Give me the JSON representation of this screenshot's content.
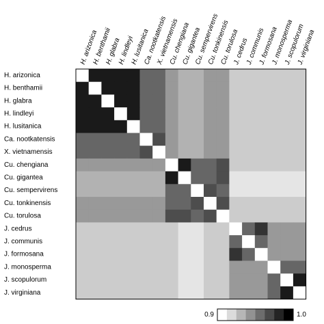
{
  "chart_data": {
    "type": "heatmap",
    "title": "",
    "labels": [
      "H. arizonica",
      "H. benthamii",
      "H. glabra",
      "H. lindleyi",
      "H. lusitanica",
      "Ca. nootkatensis",
      "X. vietnamensis",
      "Cu. chengiana",
      "Cu. gigantea",
      "Cu. sempervirens",
      "Cu. tonkinensis",
      "Cu. torulosa",
      "J. cedrus",
      "J. communis",
      "J. formosana",
      "J. monosperma",
      "J. scopulorum",
      "J. virginiana"
    ],
    "column_labels_position": "top",
    "row_labels_position": "left",
    "colorscale": {
      "min": 0.9,
      "max": 1.0,
      "min_label": "0.9",
      "max_label": "1.0",
      "low_color": "#ffffff",
      "high_color": "#000000",
      "legend_steps": 8,
      "position": "bottom-right"
    },
    "diagonal": "blank",
    "values": [
      [
        null,
        0.99,
        0.99,
        0.99,
        0.99,
        0.96,
        0.96,
        0.94,
        0.93,
        0.93,
        0.94,
        0.94,
        0.92,
        0.92,
        0.92,
        0.92,
        0.92,
        0.92
      ],
      [
        0.99,
        null,
        0.99,
        0.99,
        0.99,
        0.96,
        0.96,
        0.94,
        0.93,
        0.93,
        0.94,
        0.94,
        0.92,
        0.92,
        0.92,
        0.92,
        0.92,
        0.92
      ],
      [
        0.99,
        0.99,
        null,
        0.99,
        0.99,
        0.96,
        0.96,
        0.94,
        0.93,
        0.93,
        0.94,
        0.94,
        0.92,
        0.92,
        0.92,
        0.92,
        0.92,
        0.92
      ],
      [
        0.99,
        0.99,
        0.99,
        null,
        0.99,
        0.96,
        0.96,
        0.94,
        0.93,
        0.93,
        0.94,
        0.94,
        0.92,
        0.92,
        0.92,
        0.92,
        0.92,
        0.92
      ],
      [
        0.99,
        0.99,
        0.99,
        0.99,
        null,
        0.96,
        0.96,
        0.94,
        0.93,
        0.93,
        0.94,
        0.94,
        0.92,
        0.92,
        0.92,
        0.92,
        0.92,
        0.92
      ],
      [
        0.96,
        0.96,
        0.96,
        0.96,
        0.96,
        null,
        0.97,
        0.94,
        0.93,
        0.93,
        0.94,
        0.94,
        0.92,
        0.92,
        0.92,
        0.92,
        0.92,
        0.92
      ],
      [
        0.96,
        0.96,
        0.96,
        0.96,
        0.96,
        0.97,
        null,
        0.94,
        0.93,
        0.93,
        0.94,
        0.94,
        0.92,
        0.92,
        0.92,
        0.92,
        0.92,
        0.92
      ],
      [
        0.94,
        0.94,
        0.94,
        0.94,
        0.94,
        0.94,
        0.94,
        null,
        0.99,
        0.96,
        0.96,
        0.97,
        0.92,
        0.92,
        0.92,
        0.92,
        0.92,
        0.92
      ],
      [
        0.93,
        0.93,
        0.93,
        0.93,
        0.93,
        0.93,
        0.93,
        0.99,
        null,
        0.96,
        0.96,
        0.97,
        0.91,
        0.91,
        0.91,
        0.91,
        0.91,
        0.91
      ],
      [
        0.93,
        0.93,
        0.93,
        0.93,
        0.93,
        0.93,
        0.93,
        0.96,
        0.96,
        null,
        0.97,
        0.96,
        0.91,
        0.91,
        0.91,
        0.91,
        0.91,
        0.91
      ],
      [
        0.94,
        0.94,
        0.94,
        0.94,
        0.94,
        0.94,
        0.94,
        0.96,
        0.96,
        0.97,
        null,
        0.97,
        0.92,
        0.92,
        0.92,
        0.92,
        0.92,
        0.92
      ],
      [
        0.94,
        0.94,
        0.94,
        0.94,
        0.94,
        0.94,
        0.94,
        0.97,
        0.97,
        0.96,
        0.97,
        null,
        0.92,
        0.92,
        0.92,
        0.92,
        0.92,
        0.92
      ],
      [
        0.92,
        0.92,
        0.92,
        0.92,
        0.92,
        0.92,
        0.92,
        0.92,
        0.91,
        0.91,
        0.92,
        0.92,
        null,
        0.96,
        0.98,
        0.94,
        0.94,
        0.94
      ],
      [
        0.92,
        0.92,
        0.92,
        0.92,
        0.92,
        0.92,
        0.92,
        0.92,
        0.91,
        0.91,
        0.92,
        0.92,
        0.96,
        null,
        0.96,
        0.94,
        0.94,
        0.94
      ],
      [
        0.92,
        0.92,
        0.92,
        0.92,
        0.92,
        0.92,
        0.92,
        0.92,
        0.91,
        0.91,
        0.92,
        0.92,
        0.98,
        0.96,
        null,
        0.94,
        0.94,
        0.94
      ],
      [
        0.92,
        0.92,
        0.92,
        0.92,
        0.92,
        0.92,
        0.92,
        0.92,
        0.91,
        0.91,
        0.92,
        0.92,
        0.94,
        0.94,
        0.94,
        null,
        0.96,
        0.96
      ],
      [
        0.92,
        0.92,
        0.92,
        0.92,
        0.92,
        0.92,
        0.92,
        0.92,
        0.91,
        0.91,
        0.92,
        0.92,
        0.94,
        0.94,
        0.94,
        0.96,
        null,
        0.99
      ],
      [
        0.92,
        0.92,
        0.92,
        0.92,
        0.92,
        0.92,
        0.92,
        0.92,
        0.91,
        0.91,
        0.92,
        0.92,
        0.94,
        0.94,
        0.94,
        0.96,
        0.99,
        null
      ]
    ]
  }
}
